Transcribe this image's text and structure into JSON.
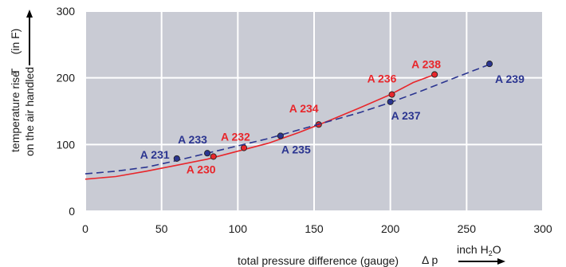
{
  "chart_data": {
    "type": "line",
    "xlim": [
      0,
      300
    ],
    "ylim": [
      0,
      300
    ],
    "x_ticks": [
      "0",
      "50",
      "100",
      "150",
      "200",
      "250",
      "300"
    ],
    "y_ticks": [
      "0",
      "100",
      "200",
      "300"
    ],
    "grid": true,
    "background_color": "#c9cbd4",
    "xlabel": "total pressure difference (gauge)",
    "xlabel_symbol": "Δ p",
    "xlabel_unit": "inch H",
    "xlabel_unit_sub": "2",
    "xlabel_unit_end": "O",
    "ylabel_line1": "temperature rise",
    "ylabel_line2": "on the air handled",
    "ylabel_symbol": "T",
    "ylabel_unit": "(in F)",
    "series": [
      {
        "color": "#e8262b",
        "style": "solid",
        "curve": [
          [
            0,
            48
          ],
          [
            20,
            52
          ],
          [
            40,
            60
          ],
          [
            60,
            69
          ],
          [
            80,
            78
          ],
          [
            100,
            90
          ],
          [
            120,
            102
          ],
          [
            140,
            118
          ],
          [
            160,
            136
          ],
          [
            180,
            155
          ],
          [
            200,
            175
          ],
          [
            215,
            193
          ],
          [
            229,
            205
          ]
        ],
        "points": [
          {
            "label": "A 230",
            "x": 84,
            "y": 82
          },
          {
            "label": "A 232",
            "x": 104,
            "y": 95
          },
          {
            "label": "A 234",
            "x": 153,
            "y": 130
          },
          {
            "label": "A 236",
            "x": 201,
            "y": 175
          },
          {
            "label": "A 238",
            "x": 229,
            "y": 205
          }
        ]
      },
      {
        "color": "#2b3590",
        "style": "dashed",
        "curve": [
          [
            0,
            56
          ],
          [
            20,
            60
          ],
          [
            40,
            66
          ],
          [
            60,
            76
          ],
          [
            80,
            87
          ],
          [
            100,
            98
          ],
          [
            120,
            109
          ],
          [
            140,
            122
          ],
          [
            160,
            135
          ],
          [
            180,
            148
          ],
          [
            200,
            163
          ],
          [
            220,
            180
          ],
          [
            240,
            198
          ],
          [
            265,
            220
          ]
        ],
        "points": [
          {
            "label": "A 231",
            "x": 60,
            "y": 79
          },
          {
            "label": "A 233",
            "x": 80,
            "y": 87
          },
          {
            "label": "A 235",
            "x": 128,
            "y": 113
          },
          {
            "label": "A 237",
            "x": 200,
            "y": 164
          },
          {
            "label": "A 239",
            "x": 265,
            "y": 221
          }
        ]
      }
    ]
  }
}
